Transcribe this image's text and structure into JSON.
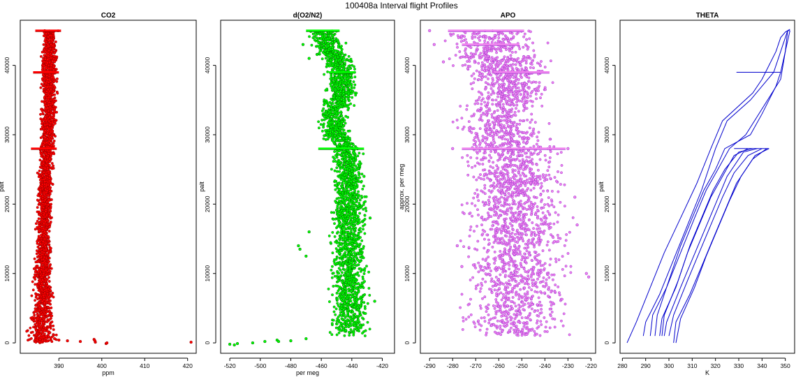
{
  "figure": {
    "title": "100408a   Interval flight Profiles"
  },
  "chart_data": [
    {
      "type": "scatter",
      "title": "CO2",
      "xlabel": "ppm",
      "ylabel": "palt",
      "xlim": [
        381,
        422
      ],
      "ylim": [
        -1500,
        46500
      ],
      "xticks": [
        390,
        400,
        410,
        420
      ],
      "yticks": [
        0,
        10000,
        20000,
        30000,
        40000
      ],
      "colors": {
        "fill": "#ff0000",
        "edge": "#8b0000"
      },
      "profile": {
        "alt": [
          0,
          2000,
          5000,
          10000,
          15000,
          20000,
          25000,
          28000,
          30000,
          35000,
          39000,
          42000,
          45000
        ],
        "center": [
          386.0,
          386.0,
          386.2,
          386.3,
          386.5,
          386.7,
          386.9,
          387.2,
          387.5,
          387.7,
          387.6,
          387.8,
          387.9
        ],
        "halfwidth": [
          3.0,
          2.6,
          2.0,
          1.6,
          1.4,
          1.3,
          1.3,
          1.3,
          1.4,
          1.4,
          1.4,
          1.4,
          1.4
        ]
      },
      "outliers": [
        {
          "x": 389,
          "y": 600
        },
        {
          "x": 390,
          "y": 400
        },
        {
          "x": 392,
          "y": 300
        },
        {
          "x": 398.2,
          "y": 500
        },
        {
          "x": 398.5,
          "y": 100
        },
        {
          "x": 398.4,
          "y": 300
        },
        {
          "x": 401,
          "y": -100
        },
        {
          "x": 401.2,
          "y": 0
        },
        {
          "x": 420.8,
          "y": 100
        },
        {
          "x": 395,
          "y": 200
        }
      ],
      "bands": [
        {
          "y": 45000,
          "x1": 384.5,
          "x2": 390.5
        },
        {
          "y": 39000,
          "x1": 384,
          "x2": 390
        },
        {
          "y": 28000,
          "x1": 383.5,
          "x2": 389.5
        }
      ]
    },
    {
      "type": "scatter",
      "title": "d(O2/N2)",
      "xlabel": "per meg",
      "ylabel": "palt",
      "xlim": [
        -526,
        -412
      ],
      "ylim": [
        -1500,
        46500
      ],
      "xticks": [
        -520,
        -500,
        -480,
        -460,
        -440,
        -420
      ],
      "yticks": [
        0,
        10000,
        20000,
        30000,
        40000
      ],
      "colors": {
        "fill": "#00ff00",
        "edge": "#006400"
      },
      "profile": {
        "alt": [
          1000,
          5000,
          10000,
          15000,
          20000,
          25000,
          28000,
          30000,
          33000,
          36000,
          39000,
          42000,
          45000
        ],
        "center": [
          -441,
          -441,
          -442,
          -442,
          -442,
          -442,
          -443,
          -450,
          -453,
          -446,
          -447,
          -454,
          -458
        ],
        "halfwidth": [
          11,
          10,
          9,
          9,
          9,
          8,
          8,
          8,
          8,
          8,
          8,
          8,
          8
        ]
      },
      "outliers": [
        {
          "x": -520,
          "y": -200
        },
        {
          "x": -517,
          "y": -300
        },
        {
          "x": -515,
          "y": -100
        },
        {
          "x": -505,
          "y": 0
        },
        {
          "x": -497,
          "y": 200
        },
        {
          "x": -489,
          "y": 400
        },
        {
          "x": -488,
          "y": 200
        },
        {
          "x": -480,
          "y": 300
        },
        {
          "x": -470,
          "y": 600
        },
        {
          "x": -474,
          "y": 13500
        },
        {
          "x": -470,
          "y": 12500
        },
        {
          "x": -475,
          "y": 14000
        },
        {
          "x": -468,
          "y": 16000
        },
        {
          "x": -472,
          "y": 43000
        },
        {
          "x": -468,
          "y": 41000
        },
        {
          "x": -432,
          "y": 24000
        },
        {
          "x": -428,
          "y": 18000
        },
        {
          "x": -425,
          "y": 6000
        }
      ],
      "bands": [
        {
          "y": 45000,
          "x1": -470,
          "x2": -448
        },
        {
          "y": 39000,
          "x1": -455,
          "x2": -438
        },
        {
          "y": 28000,
          "x1": -462,
          "x2": -432
        }
      ]
    },
    {
      "type": "scatter",
      "title": "APO",
      "xlabel": "",
      "ylabel": "approx. per meg",
      "xlim": [
        -294,
        -218
      ],
      "ylim": [
        -1500,
        46500
      ],
      "xticks": [
        -290,
        -280,
        -270,
        -260,
        -250,
        -240,
        -230,
        -220
      ],
      "yticks": [
        0,
        10000,
        20000,
        30000,
        40000
      ],
      "colors": {
        "fill": "#ee82ee",
        "edge": "#9932cc"
      },
      "profile": {
        "alt": [
          1000,
          5000,
          10000,
          15000,
          20000,
          25000,
          28000,
          30000,
          33000,
          36000,
          39000,
          42000,
          45000
        ],
        "center": [
          -253,
          -253,
          -253,
          -253,
          -253,
          -253,
          -253,
          -258,
          -262,
          -255,
          -256,
          -262,
          -264
        ],
        "halfwidth": [
          17,
          17,
          17,
          17,
          17,
          16,
          16,
          15,
          14,
          14,
          15,
          17,
          19
        ]
      },
      "outliers": [
        {
          "x": -290,
          "y": 45000
        },
        {
          "x": -288,
          "y": 43000
        },
        {
          "x": -284,
          "y": 40500
        },
        {
          "x": -278,
          "y": 14000
        },
        {
          "x": -276,
          "y": 11000
        },
        {
          "x": -227,
          "y": 21000
        },
        {
          "x": -226,
          "y": 17000
        },
        {
          "x": -222,
          "y": 10000
        },
        {
          "x": -221,
          "y": 9500
        },
        {
          "x": -280,
          "y": 28000
        },
        {
          "x": -230,
          "y": 28000
        }
      ],
      "bands": [
        {
          "y": 45000,
          "x1": -282,
          "x2": -249
        },
        {
          "y": 43000,
          "x1": -276,
          "x2": -251
        },
        {
          "y": 39000,
          "x1": -262,
          "x2": -238
        },
        {
          "y": 28000,
          "x1": -276,
          "x2": -231
        }
      ]
    },
    {
      "type": "line",
      "title": "THETA",
      "xlabel": "K",
      "ylabel": "palt",
      "xlim": [
        279,
        354
      ],
      "ylim": [
        -1500,
        46500
      ],
      "xticks": [
        280,
        290,
        300,
        310,
        320,
        330,
        340,
        350
      ],
      "yticks": [
        0,
        10000,
        20000,
        30000,
        40000
      ],
      "colors": {
        "line": "#0000cd"
      },
      "series": [
        {
          "x": [
            282,
            286,
            292,
            298,
            305,
            312,
            318,
            323,
            336,
            340,
            343,
            346,
            348,
            350,
            351,
            352
          ],
          "y": [
            0,
            3000,
            8000,
            13000,
            18000,
            23000,
            28000,
            32000,
            36000,
            38000,
            40000,
            42000,
            44000,
            44800,
            45000,
            45000
          ]
        },
        {
          "x": [
            289,
            290,
            296,
            302,
            308,
            314,
            318,
            320,
            325,
            335,
            340,
            345,
            347,
            349,
            350,
            351,
            352
          ],
          "y": [
            1000,
            3000,
            7000,
            12000,
            17000,
            22000,
            26000,
            28000,
            32000,
            35000,
            37000,
            39000,
            41000,
            43000,
            44000,
            45000,
            45200
          ]
        },
        {
          "x": [
            292,
            293,
            299,
            305,
            311,
            316,
            321,
            326,
            333,
            348,
            350,
            351
          ],
          "y": [
            1000,
            4000,
            8000,
            13000,
            18000,
            22000,
            25000,
            28000,
            30000,
            38000,
            42000,
            45000
          ]
        },
        {
          "x": [
            294,
            295,
            300,
            305,
            310,
            315,
            320,
            324,
            335,
            340,
            346,
            348,
            352
          ],
          "y": [
            1000,
            4000,
            9000,
            14000,
            18000,
            22000,
            25000,
            28000,
            30000,
            33000,
            37000,
            39000,
            45000
          ]
        },
        {
          "x": [
            296,
            297,
            303,
            308,
            313,
            318,
            323,
            328,
            334
          ],
          "y": [
            1000,
            3500,
            8000,
            13000,
            17000,
            21000,
            24000,
            27000,
            28000
          ]
        },
        {
          "x": [
            297,
            298,
            304,
            309,
            314,
            319,
            324,
            330,
            336
          ],
          "y": [
            1000,
            4000,
            9000,
            14000,
            18000,
            22000,
            25000,
            27500,
            28000
          ]
        },
        {
          "x": [
            298,
            299,
            305,
            310,
            315,
            320,
            325,
            332,
            338
          ],
          "y": [
            1000,
            3000,
            8000,
            12000,
            16000,
            20000,
            24000,
            27500,
            28000
          ]
        },
        {
          "x": [
            300,
            302,
            308,
            313,
            318,
            323,
            328,
            334,
            340
          ],
          "y": [
            1000,
            4000,
            9000,
            13000,
            17000,
            21000,
            24500,
            27000,
            28000
          ]
        },
        {
          "x": [
            302,
            303,
            309,
            314,
            319,
            324,
            329,
            336,
            342
          ],
          "y": [
            0,
            3000,
            7000,
            11000,
            15000,
            19000,
            23000,
            26500,
            28000
          ]
        },
        {
          "x": [
            303,
            305,
            311,
            316,
            321,
            326,
            331,
            337,
            343
          ],
          "y": [
            0,
            3500,
            8000,
            12500,
            16500,
            20500,
            24000,
            27000,
            28000
          ]
        },
        {
          "x": [
            328,
            329,
            330,
            331,
            333,
            335,
            337,
            339,
            341,
            342,
            343
          ],
          "y": [
            28000,
            28000,
            28000,
            28000,
            28000,
            28000,
            28000,
            28000,
            28000,
            28000,
            28000
          ]
        },
        {
          "x": [
            329,
            330,
            331,
            333,
            335,
            337,
            339,
            341,
            343,
            344,
            345,
            347,
            348
          ],
          "y": [
            39000,
            39000,
            39000,
            39000,
            39000,
            39000,
            39000,
            39000,
            39000,
            39000,
            39000,
            39000,
            39000
          ]
        }
      ]
    }
  ]
}
